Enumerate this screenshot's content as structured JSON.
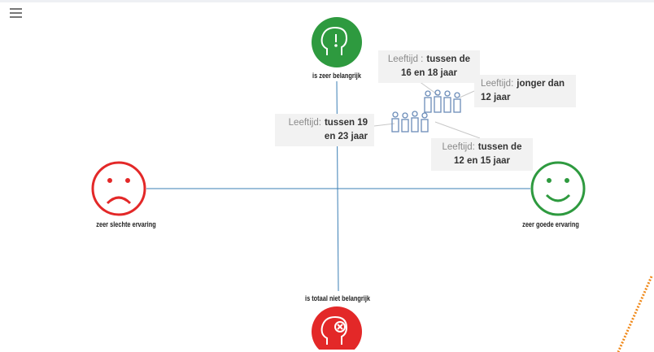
{
  "axes": {
    "top": "is zeer belangrijk",
    "bottom": "is totaal niet belangrijk",
    "left": "zeer slechte ervaring",
    "right": "zeer goede ervaring"
  },
  "annotations": [
    {
      "key": "Leeftijd :",
      "value": "tussen de 16 en 18 jaar"
    },
    {
      "key": "Leeftijd:",
      "value": "jonger dan 12 jaar"
    },
    {
      "key": "Leeftijd:",
      "value": "tussen 19 en 23 jaar"
    },
    {
      "key": "Leeftijd:",
      "value": "tussen de 12 en 15 jaar"
    }
  ]
}
